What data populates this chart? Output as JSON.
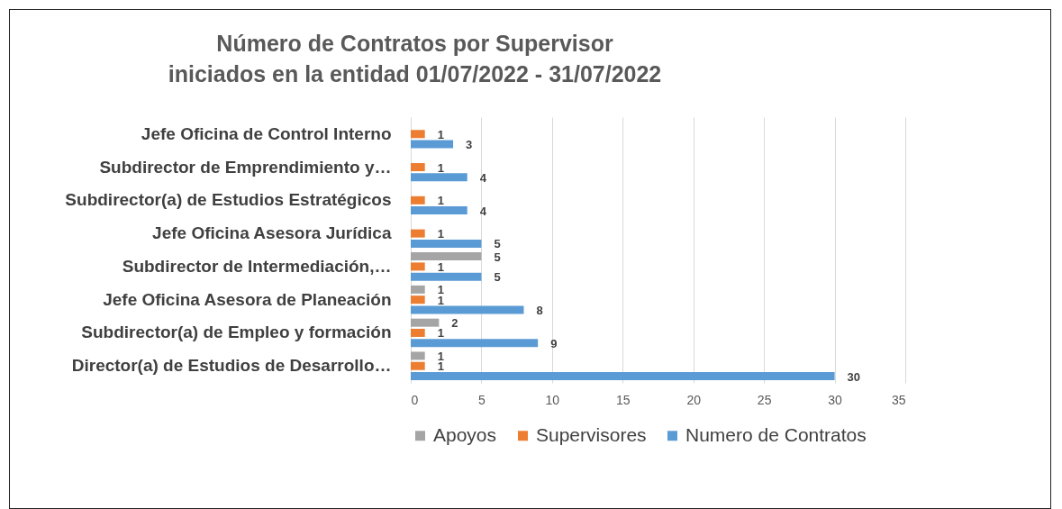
{
  "chart_data": {
    "type": "bar",
    "orientation": "horizontal",
    "title": "Número de Contratos  por Supervisor\niniciados en la entidad 01/07/2022 - 31/07/2022",
    "categories": [
      "Jefe Oficina de Control Interno",
      "Subdirector de Emprendimiento y…",
      "Subdirector(a) de Estudios Estratégicos",
      "Jefe Oficina Asesora Jurídica",
      "Subdirector de Intermediación,…",
      "Jefe Oficina Asesora de Planeación",
      "Subdirector(a) de Empleo y formación",
      "Director(a) de Estudios de Desarrollo…"
    ],
    "series": [
      {
        "name": "Apoyos",
        "color": "#a5a5a5",
        "values": [
          null,
          null,
          null,
          null,
          5,
          1,
          2,
          1
        ]
      },
      {
        "name": "Supervisores",
        "color": "#ed7d31",
        "values": [
          1,
          1,
          1,
          1,
          1,
          1,
          1,
          1
        ]
      },
      {
        "name": "Numero de Contratos",
        "color": "#5b9bd5",
        "values": [
          3,
          4,
          4,
          5,
          5,
          8,
          9,
          30
        ]
      }
    ],
    "xlim": [
      0,
      35
    ],
    "xticks": [
      0,
      5,
      10,
      15,
      20,
      25,
      30,
      35
    ],
    "grid": "x",
    "legend": "bottom",
    "data_labels": true
  }
}
